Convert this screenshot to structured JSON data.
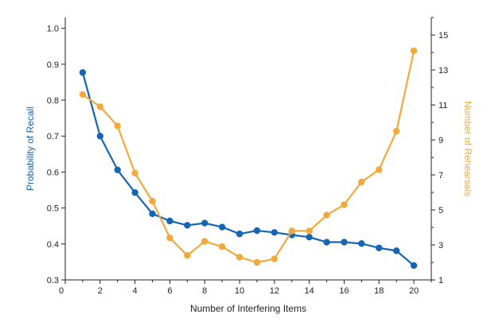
{
  "chart_data": {
    "type": "line",
    "xlabel": "Number of Interfering Items",
    "ylabel_left": "Probability of Recall",
    "ylabel_right": "Number of Rehearsals",
    "xlim": [
      0,
      21
    ],
    "ylim_left": [
      0.3,
      1.03
    ],
    "ylim_right": [
      1,
      16
    ],
    "x_ticks": [
      0,
      2,
      4,
      6,
      8,
      10,
      12,
      14,
      16,
      18,
      20
    ],
    "y_left_ticks": [
      "0.3",
      "0.4",
      "0.5",
      "0.6",
      "0.7",
      "0.8",
      "0.9",
      "1.0"
    ],
    "y_right_ticks": [
      1,
      3,
      5,
      7,
      9,
      11,
      13,
      15
    ],
    "grid": false,
    "series": [
      {
        "axis": "left",
        "color": "#1565b5",
        "x": [
          1,
          2,
          3,
          4,
          5,
          6,
          7,
          8,
          9,
          10,
          11,
          12,
          13,
          14,
          15,
          16,
          17,
          18,
          19,
          20
        ],
        "values": [
          0.877,
          0.7,
          0.606,
          0.543,
          0.484,
          0.464,
          0.452,
          0.458,
          0.447,
          0.428,
          0.437,
          0.432,
          0.425,
          0.419,
          0.405,
          0.405,
          0.401,
          0.389,
          0.381,
          0.34
        ]
      },
      {
        "axis": "right",
        "color": "#f2a93b",
        "x": [
          1,
          2,
          3,
          4,
          5,
          6,
          7,
          8,
          9,
          10,
          11,
          12,
          13,
          14,
          15,
          16,
          17,
          18,
          19,
          20
        ],
        "values": [
          11.6,
          10.9,
          9.8,
          7.1,
          5.5,
          3.4,
          2.4,
          3.2,
          2.9,
          2.3,
          2.0,
          2.2,
          3.8,
          3.8,
          4.7,
          5.3,
          6.6,
          7.3,
          9.5,
          14.1
        ]
      }
    ]
  }
}
